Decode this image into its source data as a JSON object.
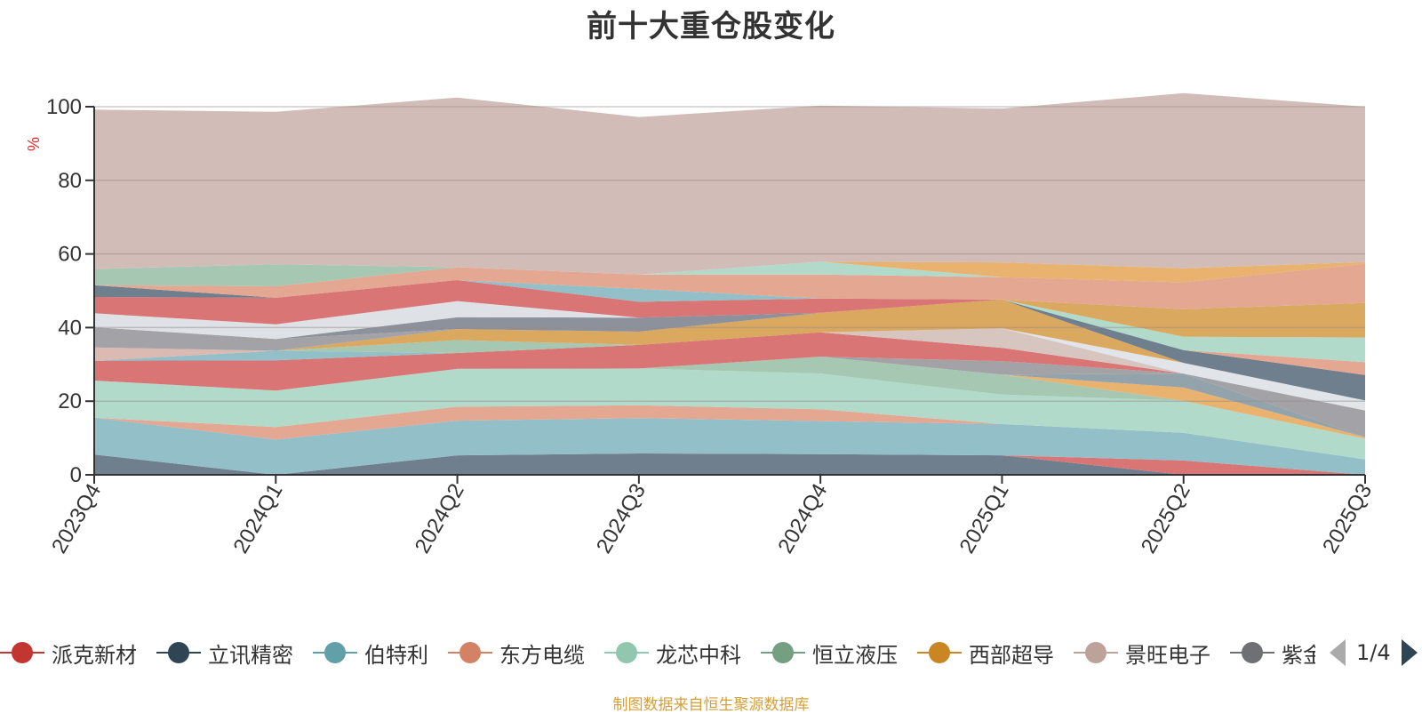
{
  "chart_data": {
    "type": "area",
    "title": "前十大重仓股变化",
    "ylabel": "%",
    "ylim": [
      0,
      100
    ],
    "y_ticks": [
      "0",
      "20",
      "40",
      "60",
      "80",
      "100"
    ],
    "x": [
      "2023Q4",
      "2024Q1",
      "2024Q2",
      "2024Q3",
      "2024Q4",
      "2025Q1",
      "2025Q2",
      "2025Q3"
    ],
    "stacked": true,
    "grid": true,
    "series": [
      {
        "name": "",
        "color": "#6b7b8a",
        "values": [
          5.5,
          0,
          5.3,
          5.8,
          5.6,
          5.3,
          0,
          0
        ]
      },
      {
        "name": "",
        "color": "#d87171",
        "values": [
          0,
          0,
          0,
          0,
          0,
          0,
          3.9,
          0
        ]
      },
      {
        "name": "",
        "color": "#8fbdc6",
        "values": [
          10,
          9.6,
          9.4,
          9.6,
          9,
          8.5,
          7.5,
          4.2
        ]
      },
      {
        "name": "",
        "color": "#e3a48e",
        "values": [
          0,
          3.4,
          3.8,
          3.5,
          3.2,
          0,
          0,
          0
        ]
      },
      {
        "name": "",
        "color": "#b0d9c8",
        "values": [
          10.1,
          9.9,
          10.3,
          10,
          9.7,
          8,
          8.7,
          5.6
        ]
      },
      {
        "name": "",
        "color": "#a3c5b0",
        "values": [
          0,
          0,
          0,
          0,
          4.6,
          5.4,
          0,
          0
        ]
      },
      {
        "name": "",
        "color": "#e8b06a",
        "values": [
          0,
          0,
          0,
          0,
          0,
          0,
          3.6,
          0.4
        ]
      },
      {
        "name": "",
        "color": "#8fa0a8",
        "values": [
          0,
          0,
          0,
          0,
          0,
          0,
          3.8,
          0
        ]
      },
      {
        "name": "",
        "color": "#a0a0a4",
        "values": [
          0,
          0,
          0,
          0,
          0,
          3.7,
          0,
          7.3
        ]
      },
      {
        "name": "",
        "color": "#d87171",
        "values": [
          5.4,
          8.2,
          4.3,
          6.4,
          6.6,
          3.6,
          0,
          0
        ]
      },
      {
        "name": "",
        "color": "#d6c3be",
        "values": [
          0,
          0,
          0,
          0,
          0,
          5.3,
          0,
          0
        ]
      },
      {
        "name": "",
        "color": "#8fbdc6",
        "values": [
          0,
          2.6,
          0,
          0,
          0,
          0,
          0,
          0
        ]
      },
      {
        "name": "",
        "color": "#a3c5b0",
        "values": [
          0,
          0,
          3.5,
          0,
          0,
          0,
          0,
          0
        ]
      },
      {
        "name": "",
        "color": "#d9b8b0",
        "values": [
          3.6,
          0,
          0,
          0,
          0,
          0,
          0,
          0
        ]
      },
      {
        "name": "",
        "color": "#e0e3e8",
        "values": [
          0,
          0,
          0,
          0,
          0,
          0,
          2.9,
          2.7
        ]
      },
      {
        "name": "",
        "color": "#d9a55a",
        "values": [
          0,
          0,
          3,
          3.6,
          5.3,
          7.8,
          0,
          0
        ]
      },
      {
        "name": "",
        "color": "#a0a0a4",
        "values": [
          5.5,
          3.2,
          0,
          0,
          0,
          0,
          0,
          0
        ]
      },
      {
        "name": "",
        "color": "#6b7b8a",
        "values": [
          0,
          0,
          0,
          0,
          0,
          0,
          3.5,
          6.9
        ]
      },
      {
        "name": "",
        "color": "#e3a48e",
        "values": [
          0,
          0,
          0,
          0,
          0,
          0,
          0,
          3.5
        ]
      },
      {
        "name": "",
        "color": "#888d99",
        "values": [
          0,
          0,
          3.2,
          3.8,
          0,
          0,
          0,
          0
        ]
      },
      {
        "name": "",
        "color": "#b0d9c8",
        "values": [
          0,
          0,
          0,
          0,
          0,
          0,
          3.6,
          6.7
        ]
      },
      {
        "name": "",
        "color": "#dde0e5",
        "values": [
          3.8,
          4,
          4.4,
          0,
          0,
          0,
          0,
          0
        ]
      },
      {
        "name": "",
        "color": "#d9a55a",
        "values": [
          0,
          0,
          0,
          0,
          0,
          0,
          7.5,
          9.4
        ]
      },
      {
        "name": "",
        "color": "#d87171",
        "values": [
          4.4,
          7.2,
          5.7,
          4.3,
          3.9,
          0,
          0,
          0
        ]
      },
      {
        "name": "",
        "color": "#8fbdc6",
        "values": [
          0,
          0,
          0,
          3.5,
          0,
          0,
          0,
          0
        ]
      },
      {
        "name": "",
        "color": "#6b7b8a",
        "values": [
          3.2,
          0,
          0,
          0,
          0,
          0,
          0,
          0
        ]
      },
      {
        "name": "",
        "color": "#e3a48e",
        "values": [
          0,
          3.1,
          3.5,
          3.9,
          6.5,
          6.1,
          7.3,
          10.6
        ]
      },
      {
        "name": "",
        "color": "#b0d9c8",
        "values": [
          0,
          0,
          0,
          0,
          3.5,
          0,
          0,
          0
        ]
      },
      {
        "name": "",
        "color": "#a3c5b0",
        "values": [
          4.4,
          6,
          0,
          0,
          0,
          0,
          0,
          0
        ]
      },
      {
        "name": "",
        "color": "#e8b06a",
        "values": [
          0,
          0,
          0,
          0,
          0,
          4,
          3.8,
          0.5
        ]
      },
      {
        "name": "",
        "color": "#cfbab5",
        "values": [
          43.3,
          41.4,
          46.1,
          42.8,
          42.4,
          41.8,
          47.6,
          42.2
        ]
      }
    ],
    "legend": {
      "position": "bottom",
      "items": [
        {
          "name": "派克新材",
          "color": "#c23531"
        },
        {
          "name": "立讯精密",
          "color": "#2f4554"
        },
        {
          "name": "伯特利",
          "color": "#61a0a8"
        },
        {
          "name": "东方电缆",
          "color": "#d48265"
        },
        {
          "name": "龙芯中科",
          "color": "#91c7ae"
        },
        {
          "name": "恒立液压",
          "color": "#749f83"
        },
        {
          "name": "西部超导",
          "color": "#ca8622"
        },
        {
          "name": "景旺电子",
          "color": "#bda29a"
        },
        {
          "name": "紫金",
          "color": "#6e7074"
        }
      ],
      "page": "1/4"
    },
    "source_note": "制图数据来自恒生聚源数据库"
  }
}
